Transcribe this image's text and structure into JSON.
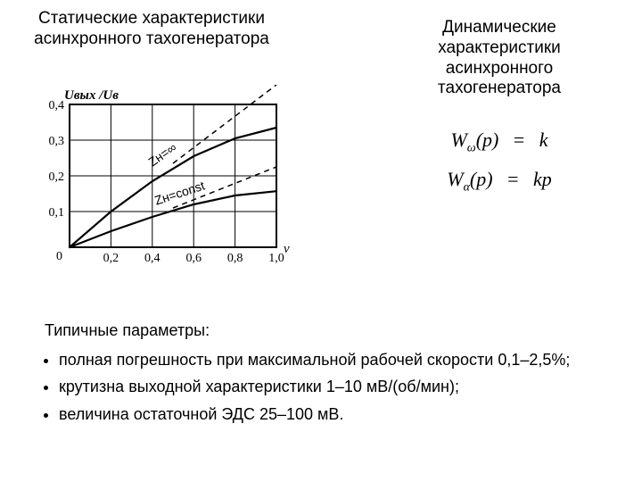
{
  "left_title": "Статические характеристики асинхронного тахогенератора",
  "right_title": "Динамические характеристики асинхронного тахогенератора",
  "equations": {
    "eq1": {
      "lhs_sym": "W",
      "lhs_sub": "ω",
      "lhs_arg": "(p)",
      "eq": "=",
      "rhs": "k"
    },
    "eq2": {
      "lhs_sym": "W",
      "lhs_sub": "α",
      "lhs_arg": "(p)",
      "eq": "=",
      "rhs": "kp"
    }
  },
  "chart": {
    "type": "line",
    "y_label": "Uвых /Uв",
    "x_label": "ν",
    "xlim": [
      0,
      1.0
    ],
    "ylim": [
      0,
      0.4
    ],
    "y_ticks": [
      0,
      0.1,
      0.2,
      0.3,
      0.4
    ],
    "y_tick_labels": [
      "0",
      "0,1",
      "0,2",
      "0,3",
      "0,4"
    ],
    "x_ticks": [
      0,
      0.2,
      0.4,
      0.6,
      0.8,
      1.0
    ],
    "x_tick_labels": [
      "0",
      "0,2",
      "0,4",
      "0,6",
      "0,8",
      "1,0"
    ],
    "background_color": "#ffffff",
    "grid_color": "#000000",
    "axis_color": "#000000",
    "axis_width": 2.0,
    "grid_width": 1.0,
    "line_color": "#000000",
    "solid_width": 2.2,
    "dashed_width": 1.5,
    "dash_pattern": "6 5",
    "upper_label": "Zн=∞",
    "lower_label": "Zн=const",
    "upper_solid": [
      [
        0,
        0
      ],
      [
        0.2,
        0.1
      ],
      [
        0.4,
        0.185
      ],
      [
        0.6,
        0.255
      ],
      [
        0.8,
        0.305
      ],
      [
        1.0,
        0.335
      ]
    ],
    "upper_dashed": [
      [
        0.5,
        0.235
      ],
      [
        1.0,
        0.455
      ]
    ],
    "lower_solid": [
      [
        0,
        0
      ],
      [
        0.2,
        0.045
      ],
      [
        0.4,
        0.085
      ],
      [
        0.6,
        0.12
      ],
      [
        0.8,
        0.145
      ],
      [
        1.0,
        0.157
      ]
    ],
    "lower_dashed": [
      [
        0.5,
        0.11
      ],
      [
        1.0,
        0.225
      ]
    ]
  },
  "params": {
    "heading": "Типичные параметры:",
    "items": [
      "полная погрешность при максимальной рабочей скорости 0,1–2,5%;",
      "крутизна выходной характеристики 1–10 мВ/(об/мин);",
      "величина остаточной ЭДС 25–100 мВ."
    ]
  }
}
